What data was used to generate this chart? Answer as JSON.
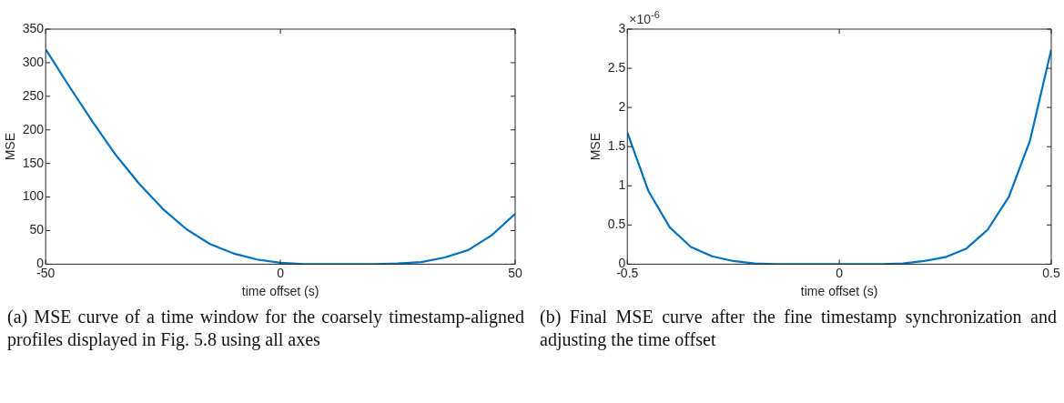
{
  "chart_data": [
    {
      "type": "line",
      "xlabel": "time offset (s)",
      "ylabel": "MSE",
      "x": [
        -50,
        -45,
        -40,
        -35,
        -30,
        -25,
        -20,
        -15,
        -10,
        -5,
        0,
        5,
        10,
        15,
        20,
        25,
        30,
        35,
        40,
        45,
        50
      ],
      "series": [
        {
          "color": "#0072bd",
          "values": [
            320,
            265,
            212,
            162,
            119,
            82,
            52,
            30,
            16,
            7,
            2,
            0,
            0,
            0,
            0,
            1,
            3,
            10,
            21,
            43,
            75
          ]
        }
      ],
      "xlim": [
        -50,
        50
      ],
      "xticks": [
        -50,
        0,
        50
      ],
      "ylim": [
        0,
        350
      ],
      "yticks": [
        0,
        50,
        100,
        150,
        200,
        250,
        300,
        350
      ],
      "marker": "none",
      "line_style": "solid",
      "annotations": [
        "(a) MSE curve of a time window for the coarsely timestamp-aligned profiles displayed in Fig. 5.8 using all axes"
      ]
    },
    {
      "type": "line",
      "xlabel": "time offset (s)",
      "ylabel": "MSE",
      "x": [
        -0.5,
        -0.45,
        -0.4,
        -0.35,
        -0.3,
        -0.25,
        -0.2,
        -0.15,
        -0.1,
        -0.05,
        0,
        0.05,
        0.1,
        0.15,
        0.2,
        0.25,
        0.3,
        0.35,
        0.4,
        0.45,
        0.5
      ],
      "series": [
        {
          "color": "#0072bd",
          "values": [
            1.68,
            0.93,
            0.47,
            0.22,
            0.1,
            0.04,
            0.01,
            0,
            0,
            0,
            0,
            0,
            0,
            0.01,
            0.04,
            0.09,
            0.2,
            0.44,
            0.86,
            1.58,
            2.74
          ]
        }
      ],
      "xlim": [
        -0.5,
        0.5
      ],
      "xticks": [
        -0.5,
        0,
        0.5
      ],
      "ylim": [
        0,
        3
      ],
      "yticks": [
        0,
        0.5,
        1,
        1.5,
        2,
        2.5,
        3
      ],
      "marker": "none",
      "line_style": "solid",
      "annotations": [
        "×10$^{-6}$",
        "(b) Final MSE curve after the fine timestamp synchronization and adjusting the time offset"
      ]
    }
  ]
}
